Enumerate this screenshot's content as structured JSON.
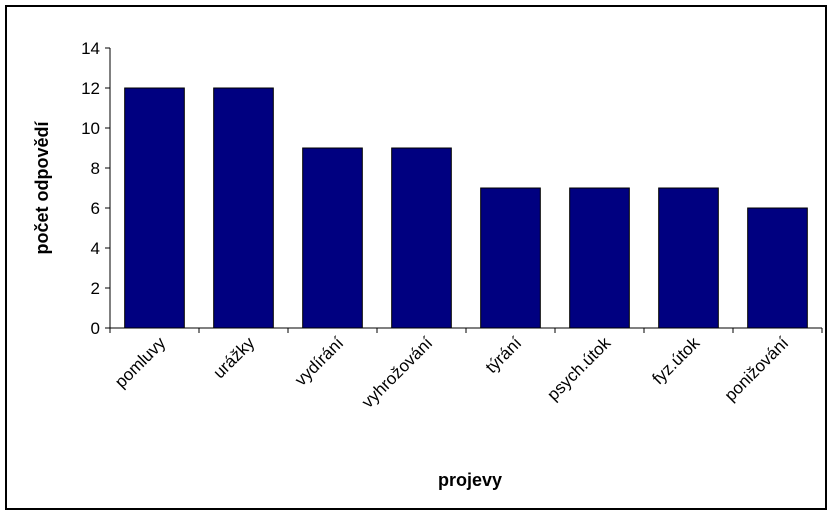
{
  "chart_data": {
    "type": "bar",
    "title": "",
    "xlabel": "projevy",
    "ylabel": "počet odpovědí",
    "categories": [
      "pomluvy",
      "urážky",
      "vydírání",
      "vyhrožování",
      "týrání",
      "psych.útok",
      "fyz.útok",
      "ponižování"
    ],
    "values": [
      12,
      12,
      9,
      9,
      7,
      7,
      7,
      6
    ],
    "ylim": [
      0,
      14
    ],
    "yticks": [
      0,
      2,
      4,
      6,
      8,
      10,
      12,
      14
    ],
    "grid": false,
    "legend": "none",
    "bar_color": "#000080",
    "bar_edge_color": "#000000"
  }
}
